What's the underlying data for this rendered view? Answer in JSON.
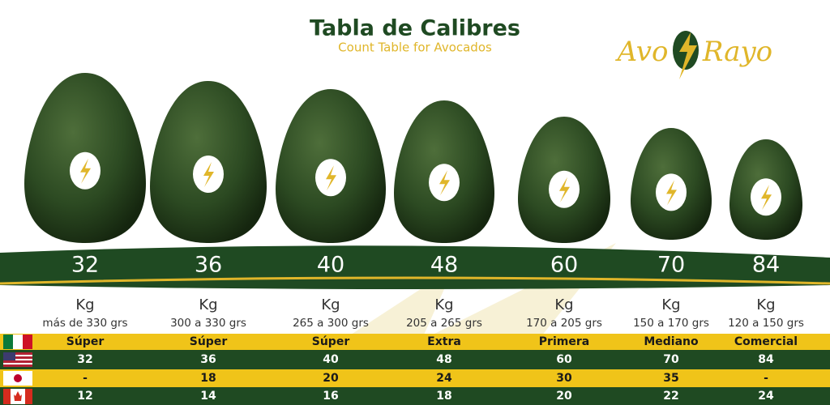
{
  "header": {
    "title": "Tabla de Calibres",
    "subtitle": "Count Table for Avocados",
    "logo": {
      "left": "Avo",
      "right": "Rayo"
    }
  },
  "sizes": [
    {
      "count": 32,
      "unit": "Kg",
      "weight": "más de 330 grs"
    },
    {
      "count": 36,
      "unit": "Kg",
      "weight": "300 a 330 grs"
    },
    {
      "count": 40,
      "unit": "Kg",
      "weight": "265 a 300 grs"
    },
    {
      "count": 48,
      "unit": "Kg",
      "weight": "205 a 265 grs"
    },
    {
      "count": 60,
      "unit": "Kg",
      "weight": "170 a 205 grs"
    },
    {
      "count": 70,
      "unit": "Kg",
      "weight": "150 a 170 grs"
    },
    {
      "count": 84,
      "unit": "Kg",
      "weight": "120 a 150 grs"
    }
  ],
  "table": {
    "rows": [
      [
        "Súper",
        "Súper",
        "Súper",
        "Extra",
        "Primera",
        "Mediano",
        "Comercial"
      ],
      [
        32,
        36,
        40,
        48,
        60,
        70,
        84
      ],
      [
        "-",
        18,
        20,
        24,
        30,
        35,
        "-"
      ],
      [
        12,
        14,
        16,
        18,
        20,
        22,
        24
      ]
    ]
  }
}
